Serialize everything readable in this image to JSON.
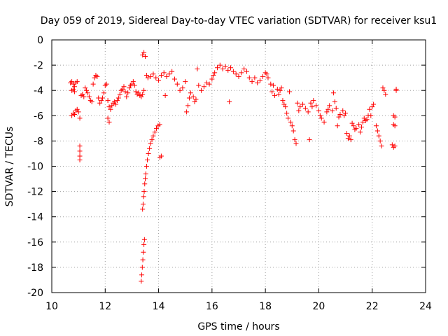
{
  "chart_data": {
    "type": "scatter",
    "title": "Day 059 of 2019, Sidereal Day-to-day VTEC variation (SDTVAR) for receiver ksu1",
    "xlabel": "GPS time / hours",
    "ylabel": "SDTVAR / TECUs",
    "xlim": [
      10,
      24
    ],
    "ylim": [
      -20,
      0
    ],
    "xticks": [
      10,
      12,
      14,
      16,
      18,
      20,
      22,
      24
    ],
    "yticks": [
      0,
      -2,
      -4,
      -6,
      -8,
      -10,
      -12,
      -14,
      -16,
      -18,
      -20
    ],
    "xtick_labels": [
      "10",
      "12",
      "14",
      "16",
      "18",
      "20",
      "22",
      "24"
    ],
    "ytick_labels": [
      "0",
      "-2",
      "-4",
      "-6",
      "-8",
      "-10",
      "-12",
      "-14",
      "-16",
      "-18",
      "-20"
    ],
    "grid": true,
    "marker": "+",
    "color": "#ff0000",
    "series": [
      {
        "name": "SDTVAR",
        "points": [
          [
            10.7,
            -3.4
          ],
          [
            10.75,
            -3.3
          ],
          [
            10.8,
            -3.5
          ],
          [
            10.85,
            -3.7
          ],
          [
            10.9,
            -3.4
          ],
          [
            10.95,
            -3.3
          ],
          [
            10.75,
            -4.0
          ],
          [
            10.8,
            -3.9
          ],
          [
            10.85,
            -4.1
          ],
          [
            10.75,
            -6.0
          ],
          [
            10.8,
            -5.8
          ],
          [
            10.85,
            -5.9
          ],
          [
            10.9,
            -5.6
          ],
          [
            10.95,
            -5.5
          ],
          [
            11.0,
            -5.7
          ],
          [
            11.05,
            -6.2
          ],
          [
            11.05,
            -8.4
          ],
          [
            11.05,
            -8.8
          ],
          [
            11.05,
            -9.2
          ],
          [
            11.05,
            -9.5
          ],
          [
            11.1,
            -4.4
          ],
          [
            11.15,
            -4.3
          ],
          [
            11.2,
            -4.5
          ],
          [
            11.25,
            -3.8
          ],
          [
            11.3,
            -4.0
          ],
          [
            11.35,
            -4.2
          ],
          [
            11.4,
            -4.5
          ],
          [
            11.45,
            -4.8
          ],
          [
            11.5,
            -4.9
          ],
          [
            11.55,
            -3.5
          ],
          [
            11.6,
            -3.0
          ],
          [
            11.65,
            -2.8
          ],
          [
            11.7,
            -2.9
          ],
          [
            11.75,
            -4.6
          ],
          [
            11.8,
            -5.0
          ],
          [
            11.85,
            -4.8
          ],
          [
            11.9,
            -4.6
          ],
          [
            11.95,
            -4.2
          ],
          [
            12.0,
            -3.6
          ],
          [
            12.05,
            -3.5
          ],
          [
            12.1,
            -4.8
          ],
          [
            12.15,
            -5.3
          ],
          [
            12.2,
            -5.5
          ],
          [
            12.1,
            -6.2
          ],
          [
            12.15,
            -6.5
          ],
          [
            12.25,
            -5.2
          ],
          [
            12.3,
            -5.0
          ],
          [
            12.35,
            -4.9
          ],
          [
            12.4,
            -5.1
          ],
          [
            12.45,
            -4.8
          ],
          [
            12.5,
            -4.6
          ],
          [
            12.55,
            -4.3
          ],
          [
            12.6,
            -4.0
          ],
          [
            12.65,
            -3.9
          ],
          [
            12.7,
            -3.7
          ],
          [
            12.75,
            -4.1
          ],
          [
            12.8,
            -4.5
          ],
          [
            12.85,
            -4.2
          ],
          [
            12.9,
            -3.8
          ],
          [
            12.95,
            -3.6
          ],
          [
            13.0,
            -3.5
          ],
          [
            13.05,
            -3.3
          ],
          [
            13.1,
            -3.6
          ],
          [
            13.15,
            -4.1
          ],
          [
            13.2,
            -4.3
          ],
          [
            13.25,
            -4.2
          ],
          [
            13.3,
            -4.4
          ],
          [
            13.35,
            -4.5
          ],
          [
            13.4,
            -4.3
          ],
          [
            13.45,
            -4.0
          ],
          [
            13.4,
            -1.2
          ],
          [
            13.45,
            -1.0
          ],
          [
            13.5,
            -1.3
          ],
          [
            13.35,
            -19.1
          ],
          [
            13.37,
            -18.6
          ],
          [
            13.39,
            -18.0
          ],
          [
            13.41,
            -17.4
          ],
          [
            13.43,
            -16.8
          ],
          [
            13.45,
            -16.2
          ],
          [
            13.47,
            -15.8
          ],
          [
            13.4,
            -13.4
          ],
          [
            13.42,
            -13.0
          ],
          [
            13.44,
            -12.4
          ],
          [
            13.46,
            -12.0
          ],
          [
            13.48,
            -11.4
          ],
          [
            13.5,
            -11.0
          ],
          [
            13.52,
            -10.6
          ],
          [
            13.55,
            -10.0
          ],
          [
            13.58,
            -9.5
          ],
          [
            13.62,
            -9.0
          ],
          [
            13.66,
            -8.6
          ],
          [
            13.7,
            -8.2
          ],
          [
            13.75,
            -7.9
          ],
          [
            13.8,
            -7.6
          ],
          [
            13.86,
            -7.3
          ],
          [
            13.92,
            -7.0
          ],
          [
            13.98,
            -6.8
          ],
          [
            14.04,
            -6.7
          ],
          [
            14.05,
            -9.3
          ],
          [
            14.1,
            -9.2
          ],
          [
            13.55,
            -2.8
          ],
          [
            13.6,
            -3.0
          ],
          [
            13.7,
            -2.9
          ],
          [
            13.8,
            -2.7
          ],
          [
            13.9,
            -3.0
          ],
          [
            14.0,
            -3.2
          ],
          [
            14.1,
            -2.8
          ],
          [
            14.2,
            -2.6
          ],
          [
            14.25,
            -4.4
          ],
          [
            14.3,
            -2.9
          ],
          [
            14.4,
            -2.7
          ],
          [
            14.5,
            -2.5
          ],
          [
            14.6,
            -3.1
          ],
          [
            14.7,
            -3.5
          ],
          [
            14.8,
            -4.0
          ],
          [
            14.9,
            -3.8
          ],
          [
            15.0,
            -3.3
          ],
          [
            15.05,
            -5.7
          ],
          [
            15.1,
            -5.2
          ],
          [
            15.15,
            -4.6
          ],
          [
            15.2,
            -4.2
          ],
          [
            15.3,
            -4.5
          ],
          [
            15.35,
            -4.9
          ],
          [
            15.4,
            -4.7
          ],
          [
            15.45,
            -2.3
          ],
          [
            15.5,
            -3.6
          ],
          [
            15.6,
            -4.0
          ],
          [
            15.7,
            -3.7
          ],
          [
            15.8,
            -3.4
          ],
          [
            15.9,
            -3.5
          ],
          [
            16.0,
            -3.1
          ],
          [
            16.05,
            -2.8
          ],
          [
            16.1,
            -2.6
          ],
          [
            16.2,
            -2.2
          ],
          [
            16.3,
            -2.0
          ],
          [
            16.4,
            -2.3
          ],
          [
            16.5,
            -2.1
          ],
          [
            16.6,
            -2.4
          ],
          [
            16.65,
            -4.9
          ],
          [
            16.7,
            -2.2
          ],
          [
            16.8,
            -2.5
          ],
          [
            16.9,
            -2.7
          ],
          [
            17.0,
            -2.9
          ],
          [
            17.1,
            -2.6
          ],
          [
            17.2,
            -2.3
          ],
          [
            17.3,
            -2.5
          ],
          [
            17.4,
            -3.0
          ],
          [
            17.5,
            -3.3
          ],
          [
            17.6,
            -3.0
          ],
          [
            17.7,
            -3.4
          ],
          [
            17.8,
            -3.2
          ],
          [
            17.9,
            -2.9
          ],
          [
            18.0,
            -2.6
          ],
          [
            18.05,
            -2.7
          ],
          [
            18.1,
            -3.0
          ],
          [
            18.2,
            -3.5
          ],
          [
            18.25,
            -4.1
          ],
          [
            18.3,
            -3.6
          ],
          [
            18.35,
            -4.4
          ],
          [
            18.45,
            -3.9
          ],
          [
            18.5,
            -4.3
          ],
          [
            18.55,
            -4.0
          ],
          [
            18.6,
            -3.8
          ],
          [
            18.65,
            -4.8
          ],
          [
            18.7,
            -5.1
          ],
          [
            18.75,
            -5.3
          ],
          [
            18.8,
            -5.8
          ],
          [
            18.85,
            -6.2
          ],
          [
            18.9,
            -4.1
          ],
          [
            18.95,
            -6.5
          ],
          [
            19.0,
            -6.8
          ],
          [
            19.05,
            -7.2
          ],
          [
            19.1,
            -7.9
          ],
          [
            19.15,
            -8.2
          ],
          [
            19.2,
            -5.0
          ],
          [
            19.25,
            -5.6
          ],
          [
            19.3,
            -5.3
          ],
          [
            19.4,
            -5.1
          ],
          [
            19.5,
            -5.4
          ],
          [
            19.6,
            -5.7
          ],
          [
            19.65,
            -7.9
          ],
          [
            19.7,
            -5.0
          ],
          [
            19.75,
            -5.3
          ],
          [
            19.8,
            -4.8
          ],
          [
            19.9,
            -5.2
          ],
          [
            20.0,
            -5.6
          ],
          [
            20.05,
            -6.0
          ],
          [
            20.1,
            -6.2
          ],
          [
            20.2,
            -6.5
          ],
          [
            20.3,
            -5.7
          ],
          [
            20.35,
            -5.5
          ],
          [
            20.4,
            -5.2
          ],
          [
            20.5,
            -5.6
          ],
          [
            20.55,
            -4.2
          ],
          [
            20.6,
            -4.9
          ],
          [
            20.65,
            -5.4
          ],
          [
            20.7,
            -6.8
          ],
          [
            20.75,
            -6.1
          ],
          [
            20.8,
            -5.9
          ],
          [
            20.9,
            -5.6
          ],
          [
            20.95,
            -6.0
          ],
          [
            21.0,
            -5.8
          ],
          [
            21.05,
            -7.4
          ],
          [
            21.1,
            -7.8
          ],
          [
            21.15,
            -7.6
          ],
          [
            21.2,
            -7.9
          ],
          [
            21.25,
            -6.6
          ],
          [
            21.3,
            -6.8
          ],
          [
            21.35,
            -7.1
          ],
          [
            21.4,
            -7.0
          ],
          [
            21.5,
            -6.7
          ],
          [
            21.55,
            -7.3
          ],
          [
            21.6,
            -6.9
          ],
          [
            21.65,
            -6.5
          ],
          [
            21.7,
            -6.2
          ],
          [
            21.75,
            -6.4
          ],
          [
            21.8,
            -6.3
          ],
          [
            21.85,
            -6.0
          ],
          [
            21.9,
            -5.5
          ],
          [
            21.95,
            -6.0
          ],
          [
            22.0,
            -5.3
          ],
          [
            22.05,
            -5.1
          ],
          [
            22.15,
            -6.8
          ],
          [
            22.2,
            -7.2
          ],
          [
            22.25,
            -7.6
          ],
          [
            22.3,
            -8.0
          ],
          [
            22.35,
            -8.4
          ],
          [
            22.4,
            -3.8
          ],
          [
            22.45,
            -4.0
          ],
          [
            22.5,
            -4.3
          ],
          [
            22.75,
            -8.3
          ],
          [
            22.8,
            -8.5
          ],
          [
            22.85,
            -8.4
          ],
          [
            22.8,
            -6.0
          ],
          [
            22.85,
            -6.1
          ],
          [
            22.8,
            -6.7
          ],
          [
            22.85,
            -6.8
          ],
          [
            22.9,
            -4.0
          ],
          [
            22.9,
            -3.9
          ]
        ]
      }
    ]
  }
}
